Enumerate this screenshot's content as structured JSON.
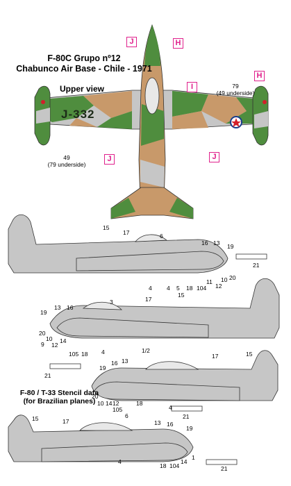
{
  "title": {
    "line1": "F-80C  Grupo nº12",
    "line2": "Chabunco Air Base - Chile - 1971"
  },
  "upper_view_label": "Upper view",
  "serial": "J-332",
  "colors": {
    "green": "#4f8d3e",
    "tan": "#c8996a",
    "grey": "#c6c6c6",
    "marker": "#e0208c",
    "roundel_blue": "#1a3c8c",
    "roundel_red": "#d21f2a"
  },
  "markers": {
    "j": "J",
    "h": "H",
    "i": "I"
  },
  "top_view_notes": {
    "right_value": "79",
    "right_note": "(49 underside)",
    "left_value": "49",
    "left_note": "(79 underside)"
  },
  "stencil_title": {
    "line1": "F-80 / T-33 Stencil data",
    "line2": "(for Brazilian planes)"
  },
  "stencil_numbers": {
    "n1": "1",
    "n1_2": "1/2",
    "n3": "3",
    "n4": "4",
    "n5": "5",
    "n6": "6",
    "n9": "9",
    "n10": "10",
    "n11": "11",
    "n12": "12",
    "n13": "13",
    "n14": "14",
    "n15": "15",
    "n16": "16",
    "n17": "17",
    "n18": "18",
    "n19": "19",
    "n20": "20",
    "n21": "21",
    "n104": "104",
    "n105": "105"
  }
}
